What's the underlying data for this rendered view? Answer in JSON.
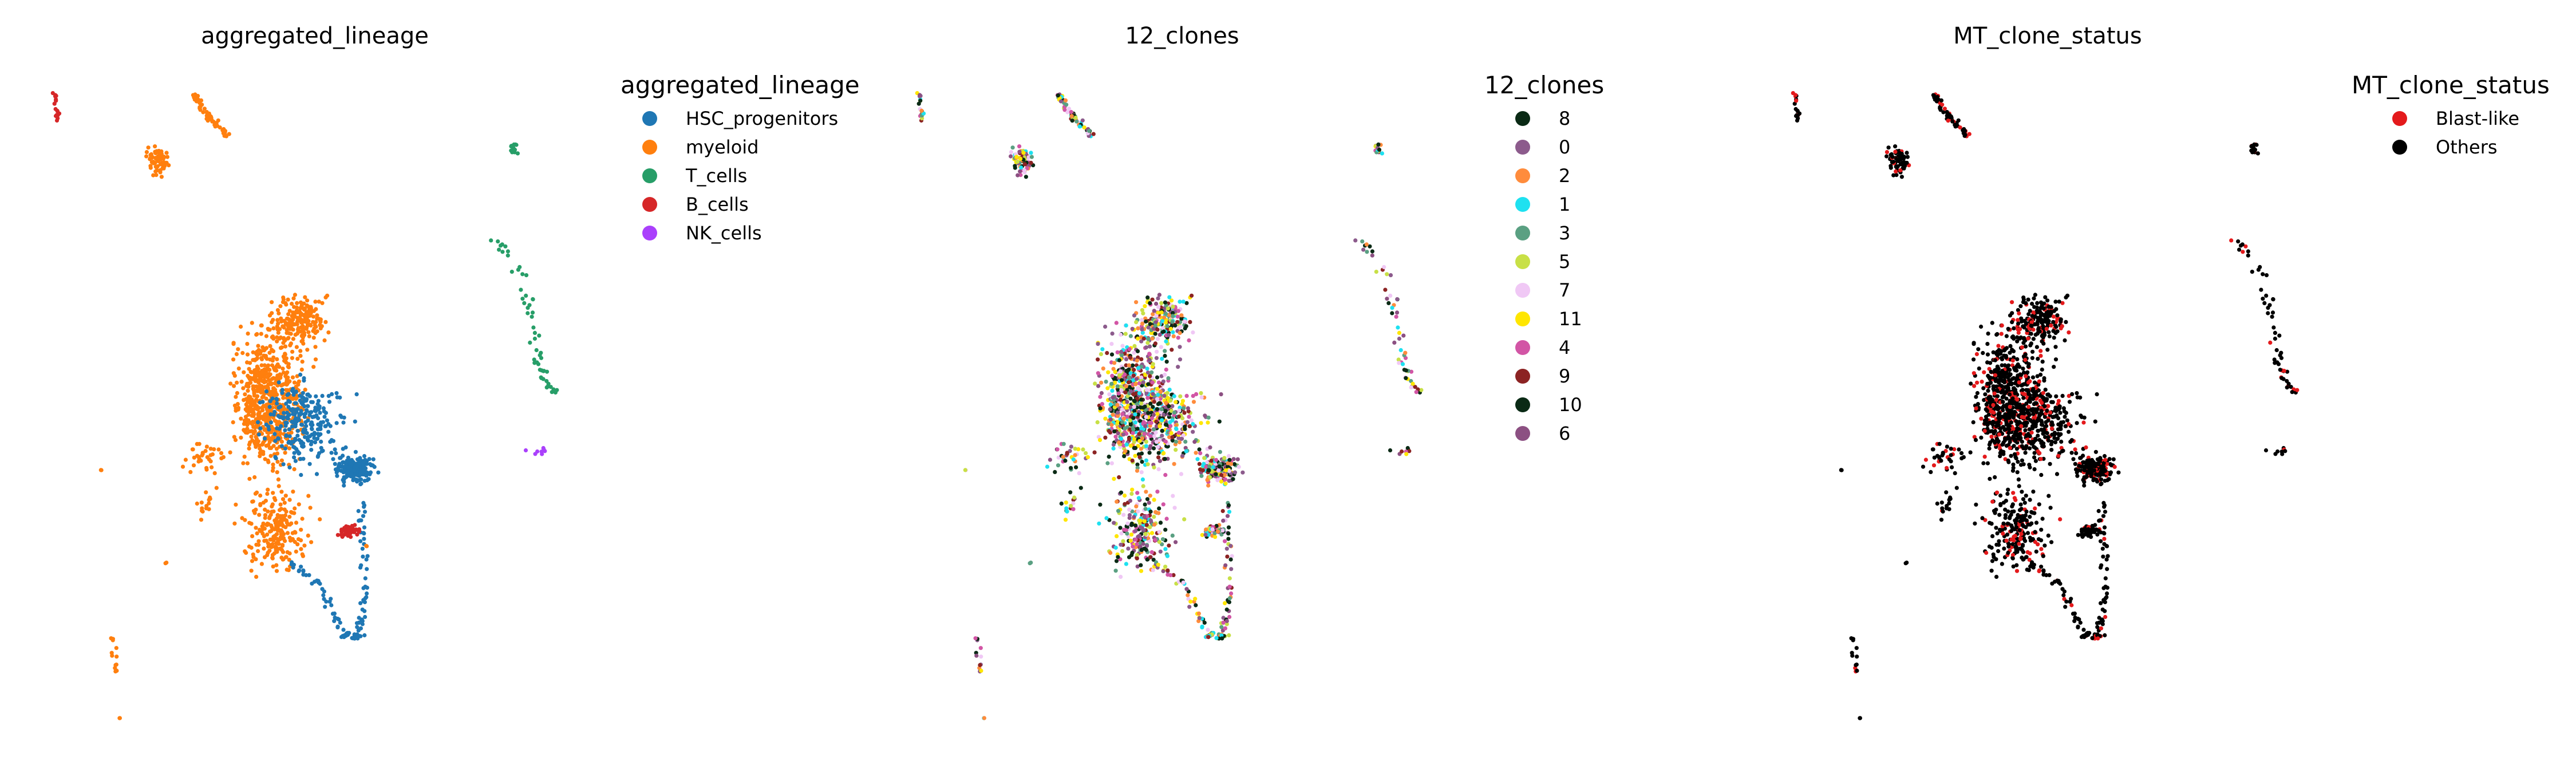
{
  "figure": {
    "panels": [
      {
        "id": "lineage",
        "title": "aggregated_lineage",
        "legend_title": "aggregated_lineage",
        "legend": [
          {
            "label": "HSC_progenitors",
            "color": "#1f77b4"
          },
          {
            "label": "myeloid",
            "color": "#ff7f0e"
          },
          {
            "label": "T_cells",
            "color": "#279e68"
          },
          {
            "label": "B_cells",
            "color": "#d62728"
          },
          {
            "label": "NK_cells",
            "color": "#aa40fc"
          }
        ]
      },
      {
        "id": "clones",
        "title": "12_clones",
        "legend_title": "12_clones",
        "legend": [
          {
            "label": "8",
            "color": "#0a2a15"
          },
          {
            "label": "0",
            "color": "#8c5b8c"
          },
          {
            "label": "2",
            "color": "#ff8c3c"
          },
          {
            "label": "1",
            "color": "#1ee1f0"
          },
          {
            "label": "3",
            "color": "#5aa082"
          },
          {
            "label": "5",
            "color": "#c8e046"
          },
          {
            "label": "7",
            "color": "#f0c8f5"
          },
          {
            "label": "11",
            "color": "#ffe600"
          },
          {
            "label": "4",
            "color": "#d255a5"
          },
          {
            "label": "9",
            "color": "#8c2323"
          },
          {
            "label": "10",
            "color": "#0a2a15"
          },
          {
            "label": "6",
            "color": "#8c5082"
          }
        ]
      },
      {
        "id": "mt",
        "title": "MT_clone_status",
        "legend_title": "MT_clone_status",
        "legend": [
          {
            "label": "Blast-like",
            "color": "#e41a1c"
          },
          {
            "label": "Others",
            "color": "#000000"
          }
        ]
      }
    ]
  },
  "chart_data": [
    {
      "type": "scatter",
      "title": "aggregated_lineage",
      "legend_title": "aggregated_lineage",
      "series": [
        {
          "name": "HSC_progenitors",
          "color": "#1f77b4"
        },
        {
          "name": "myeloid",
          "color": "#ff7f0e"
        },
        {
          "name": "T_cells",
          "color": "#279e68"
        },
        {
          "name": "B_cells",
          "color": "#d62728"
        },
        {
          "name": "NK_cells",
          "color": "#aa40fc"
        }
      ],
      "legend_position": "right",
      "grid": false,
      "axes_visible": false
    },
    {
      "type": "scatter",
      "title": "12_clones",
      "legend_title": "12_clones",
      "series": [
        {
          "name": "8",
          "color": "#0a2a15"
        },
        {
          "name": "0",
          "color": "#8c5b8c"
        },
        {
          "name": "2",
          "color": "#ff8c3c"
        },
        {
          "name": "1",
          "color": "#1ee1f0"
        },
        {
          "name": "3",
          "color": "#5aa082"
        },
        {
          "name": "5",
          "color": "#c8e046"
        },
        {
          "name": "7",
          "color": "#f0c8f5"
        },
        {
          "name": "11",
          "color": "#ffe600"
        },
        {
          "name": "4",
          "color": "#d255a5"
        },
        {
          "name": "9",
          "color": "#8c2323"
        },
        {
          "name": "10",
          "color": "#0a2a15"
        },
        {
          "name": "6",
          "color": "#8c5082"
        }
      ],
      "legend_position": "right",
      "grid": false,
      "axes_visible": false
    },
    {
      "type": "scatter",
      "title": "MT_clone_status",
      "legend_title": "MT_clone_status",
      "series": [
        {
          "name": "Blast-like",
          "color": "#e41a1c"
        },
        {
          "name": "Others",
          "color": "#000000"
        }
      ],
      "legend_position": "right",
      "grid": false,
      "axes_visible": false
    }
  ]
}
